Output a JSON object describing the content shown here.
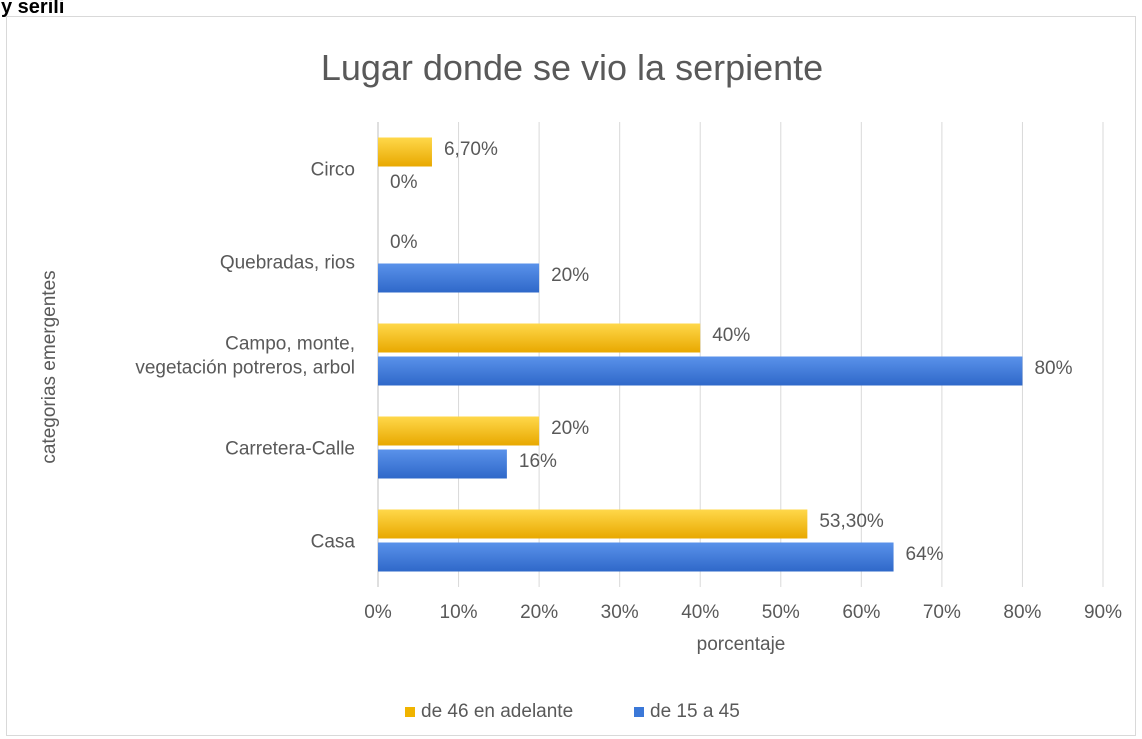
{
  "header_fragment": "y serili",
  "chart_data": {
    "type": "bar",
    "orientation": "horizontal",
    "title": "Lugar donde se vio la serpiente",
    "xlabel": "porcentaje",
    "ylabel": "categorias emergentes",
    "categories": [
      "Circo",
      "Quebradas, rios",
      "Campo, monte,\nvegetación potreros, arbol",
      "Carretera-Calle",
      "Casa"
    ],
    "series": [
      {
        "name": "de 46 en adelante",
        "color": "#f0b400",
        "values": [
          6.7,
          0,
          40,
          20,
          53.3
        ],
        "labels": [
          "6,70%",
          "0%",
          "40%",
          "20%",
          "53,30%"
        ]
      },
      {
        "name": "de 15 a 45",
        "color": "#3b78d8",
        "values": [
          0,
          20,
          80,
          16,
          64
        ],
        "labels": [
          "0%",
          "20%",
          "80%",
          "16%",
          "64%"
        ]
      }
    ],
    "xlim": [
      0,
      90
    ],
    "xticks": [
      0,
      10,
      20,
      30,
      40,
      50,
      60,
      70,
      80,
      90
    ],
    "xtick_labels": [
      "0%",
      "10%",
      "20%",
      "30%",
      "40%",
      "50%",
      "60%",
      "70%",
      "80%",
      "90%"
    ],
    "grid": true,
    "legend_position": "bottom"
  }
}
